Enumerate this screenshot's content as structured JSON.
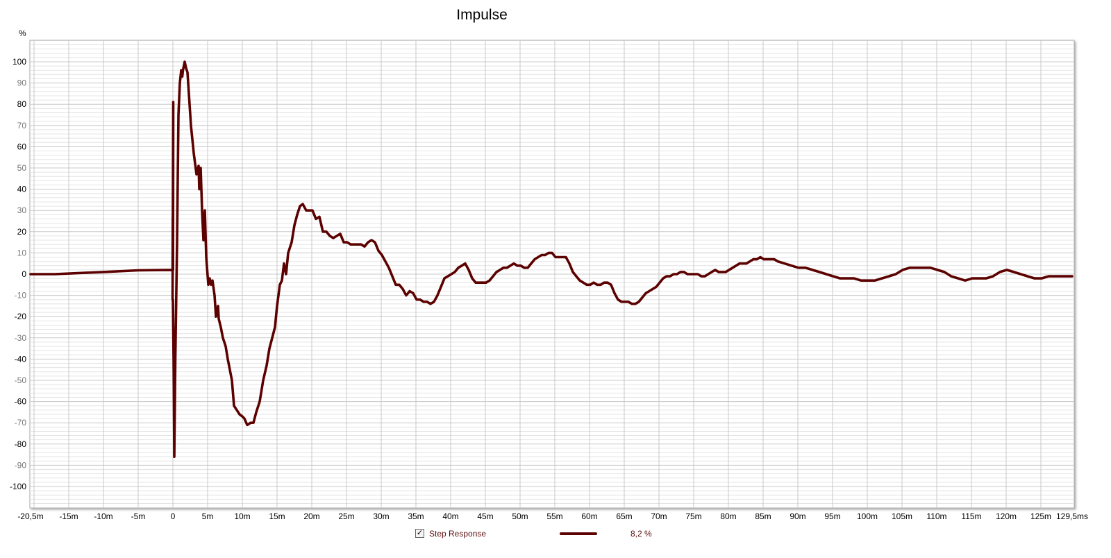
{
  "chart_data": {
    "type": "line",
    "title": "Impulse",
    "ylabel": "%",
    "xlabel": "",
    "xlim": [
      -20.5,
      129.5
    ],
    "ylim": [
      -110,
      110
    ],
    "x_ticks": [
      -20.5,
      -15,
      -10,
      -5,
      0,
      5,
      10,
      15,
      20,
      25,
      30,
      35,
      40,
      45,
      50,
      55,
      60,
      65,
      70,
      75,
      80,
      85,
      90,
      95,
      100,
      105,
      110,
      115,
      120,
      125,
      129.5
    ],
    "x_tick_labels": [
      "-20,5m",
      "-15m",
      "-10m",
      "-5m",
      "0",
      "5m",
      "10m",
      "15m",
      "20m",
      "25m",
      "30m",
      "35m",
      "40m",
      "45m",
      "50m",
      "55m",
      "60m",
      "65m",
      "70m",
      "75m",
      "80m",
      "85m",
      "90m",
      "95m",
      "100m",
      "105m",
      "110m",
      "115m",
      "120m",
      "125m",
      "129,5ms"
    ],
    "y_ticks": [
      100,
      90,
      80,
      70,
      60,
      50,
      40,
      30,
      20,
      10,
      0,
      -10,
      -20,
      -30,
      -40,
      -50,
      -60,
      -70,
      -80,
      -90,
      -100
    ],
    "y_tick_labels": [
      "100",
      "90",
      "80",
      "70",
      "60",
      "50",
      "40",
      "30",
      "20",
      "10",
      "0",
      "-10",
      "-20",
      "-30",
      "-40",
      "-50",
      "-60",
      "-70",
      "-80",
      "-90",
      "-100"
    ],
    "grid": true,
    "legend_placement": "bottom-center",
    "series": [
      {
        "name": "Step Response",
        "color": "#5c0000",
        "legend_value": "8,2 %",
        "checked": true,
        "x": [
          -20.5,
          -17,
          -10,
          -5,
          -0.2,
          -0.05,
          -0.02,
          0.02,
          0.05,
          -0.05,
          0.0,
          0.1,
          0.2,
          0.35,
          0.6,
          0.8,
          1.0,
          1.2,
          1.35,
          1.45,
          1.7,
          1.9,
          2.1,
          2.3,
          2.6,
          3.0,
          3.4,
          3.7,
          3.8,
          4.0,
          4.2,
          4.4,
          4.6,
          4.8,
          5.1,
          5.3,
          5.5,
          5.7,
          6.0,
          6.2,
          6.5,
          6.6,
          6.9,
          7.2,
          7.6,
          7.9,
          8.2,
          8.5,
          8.8,
          9.2,
          9.6,
          10.0,
          10.3,
          10.7,
          11.2,
          11.6,
          12.0,
          12.5,
          13.0,
          13.5,
          13.9,
          14.3,
          14.7,
          15.0,
          15.4,
          15.7,
          16.0,
          16.3,
          16.6,
          17.1,
          17.5,
          17.9,
          18.3,
          18.7,
          19.2,
          19.7,
          20.1,
          20.6,
          21.1,
          21.6,
          22.1,
          22.6,
          23.1,
          23.6,
          24.1,
          24.6,
          25.1,
          25.6,
          26.1,
          26.6,
          27.1,
          27.6,
          28.1,
          28.6,
          29.1,
          29.6,
          30.1,
          30.6,
          31.1,
          31.6,
          32.1,
          32.6,
          33.1,
          33.6,
          34.1,
          34.6,
          35.1,
          35.6,
          36.1,
          36.6,
          37.1,
          37.6,
          38.1,
          38.6,
          39.1,
          39.6,
          40.1,
          40.6,
          41.1,
          41.6,
          42.1,
          42.6,
          43.1,
          43.6,
          44.1,
          44.6,
          45.1,
          45.6,
          46.1,
          46.6,
          47.1,
          47.6,
          48.1,
          48.6,
          49.1,
          49.6,
          50.1,
          50.6,
          51.1,
          51.6,
          52.1,
          52.6,
          53.1,
          53.6,
          54.1,
          54.6,
          55.1,
          55.6,
          56.1,
          56.6,
          57.1,
          57.6,
          58.1,
          58.6,
          59.1,
          59.6,
          60.1,
          60.6,
          61.1,
          61.6,
          62.1,
          62.6,
          63.1,
          63.6,
          64.1,
          64.6,
          65.1,
          65.6,
          66.1,
          66.6,
          67.1,
          67.6,
          68.1,
          68.6,
          69.1,
          69.6,
          70.1,
          70.6,
          71.1,
          71.6,
          72.1,
          72.6,
          73.1,
          73.6,
          74.1,
          74.6,
          75.1,
          75.6,
          76.1,
          76.6,
          77.1,
          77.6,
          78.1,
          78.6,
          79.1,
          79.6,
          80.1,
          80.6,
          81.1,
          81.6,
          82.1,
          82.6,
          83.1,
          83.6,
          84.1,
          84.6,
          85.1,
          85.6,
          86.1,
          86.6,
          87.1,
          88.1,
          89.1,
          90.1,
          91.1,
          92.1,
          93.1,
          94.1,
          95.1,
          96.1,
          97.1,
          98.1,
          99.1,
          100.1,
          101.1,
          102.1,
          103.1,
          104.1,
          105.1,
          106.1,
          107.1,
          108.1,
          109.1,
          110.1,
          111.1,
          112.1,
          113.1,
          114.1,
          115.1,
          116.1,
          117.1,
          118.1,
          119.1,
          120.1,
          121.1,
          122.1,
          123.1,
          124.1,
          125.1,
          126.1,
          127.1,
          128.1,
          129.5
        ],
        "y": [
          0,
          0,
          1,
          1.8,
          2,
          2,
          27,
          2,
          81,
          -12,
          -12,
          -40,
          -86,
          -40,
          15,
          75,
          90,
          96,
          93,
          96,
          100,
          97,
          95,
          85,
          70,
          57,
          47,
          51,
          40,
          50,
          30,
          16,
          30,
          8,
          -5,
          -2,
          -5,
          -3,
          -10,
          -20,
          -15,
          -21,
          -25,
          -30,
          -34,
          -40,
          -45,
          -50,
          -62,
          -64,
          -66,
          -67,
          -68,
          -71,
          -70,
          -70,
          -65,
          -60,
          -50,
          -43,
          -35,
          -30,
          -25,
          -15,
          -5,
          -3,
          5,
          0,
          10,
          15,
          23,
          28,
          32,
          33,
          30,
          30,
          30,
          26,
          27,
          20,
          20,
          18,
          17,
          18,
          19,
          15,
          15,
          14,
          14,
          14,
          14,
          13,
          15,
          16,
          15,
          11,
          9,
          6,
          3,
          -1,
          -5,
          -5,
          -7,
          -10,
          -8,
          -9,
          -12,
          -12,
          -13,
          -13,
          -14,
          -13,
          -10,
          -6,
          -2,
          -1,
          0,
          1,
          3,
          4,
          5,
          2,
          -2,
          -4,
          -4,
          -4,
          -4,
          -3,
          -1,
          1,
          2,
          3,
          3,
          4,
          5,
          4,
          4,
          3,
          3,
          5,
          7,
          8,
          9,
          9,
          10,
          10,
          8,
          8,
          8,
          8,
          5,
          1,
          -1,
          -3,
          -4,
          -5,
          -5,
          -4,
          -5,
          -5,
          -4,
          -4,
          -5,
          -9,
          -12,
          -13,
          -13,
          -13,
          -14,
          -14,
          -13,
          -11,
          -9,
          -8,
          -7,
          -6,
          -4,
          -2,
          -1,
          -1,
          0,
          0,
          1,
          1,
          0,
          0,
          0,
          0,
          -1,
          -1,
          0,
          1,
          2,
          1,
          1,
          1,
          2,
          3,
          4,
          5,
          5,
          5,
          6,
          7,
          7,
          8,
          7,
          7,
          7,
          7,
          6,
          5,
          4,
          3,
          3,
          2,
          1,
          0,
          -1,
          -2,
          -2,
          -2,
          -3,
          -3,
          -3,
          -2,
          -1,
          0,
          2,
          3,
          3,
          3,
          3,
          2,
          1,
          -1,
          -2,
          -3,
          -2,
          -2,
          -2,
          -1,
          1,
          2,
          1,
          0,
          -1,
          -2,
          -2,
          -1,
          -1,
          -1,
          -1
        ]
      }
    ]
  }
}
